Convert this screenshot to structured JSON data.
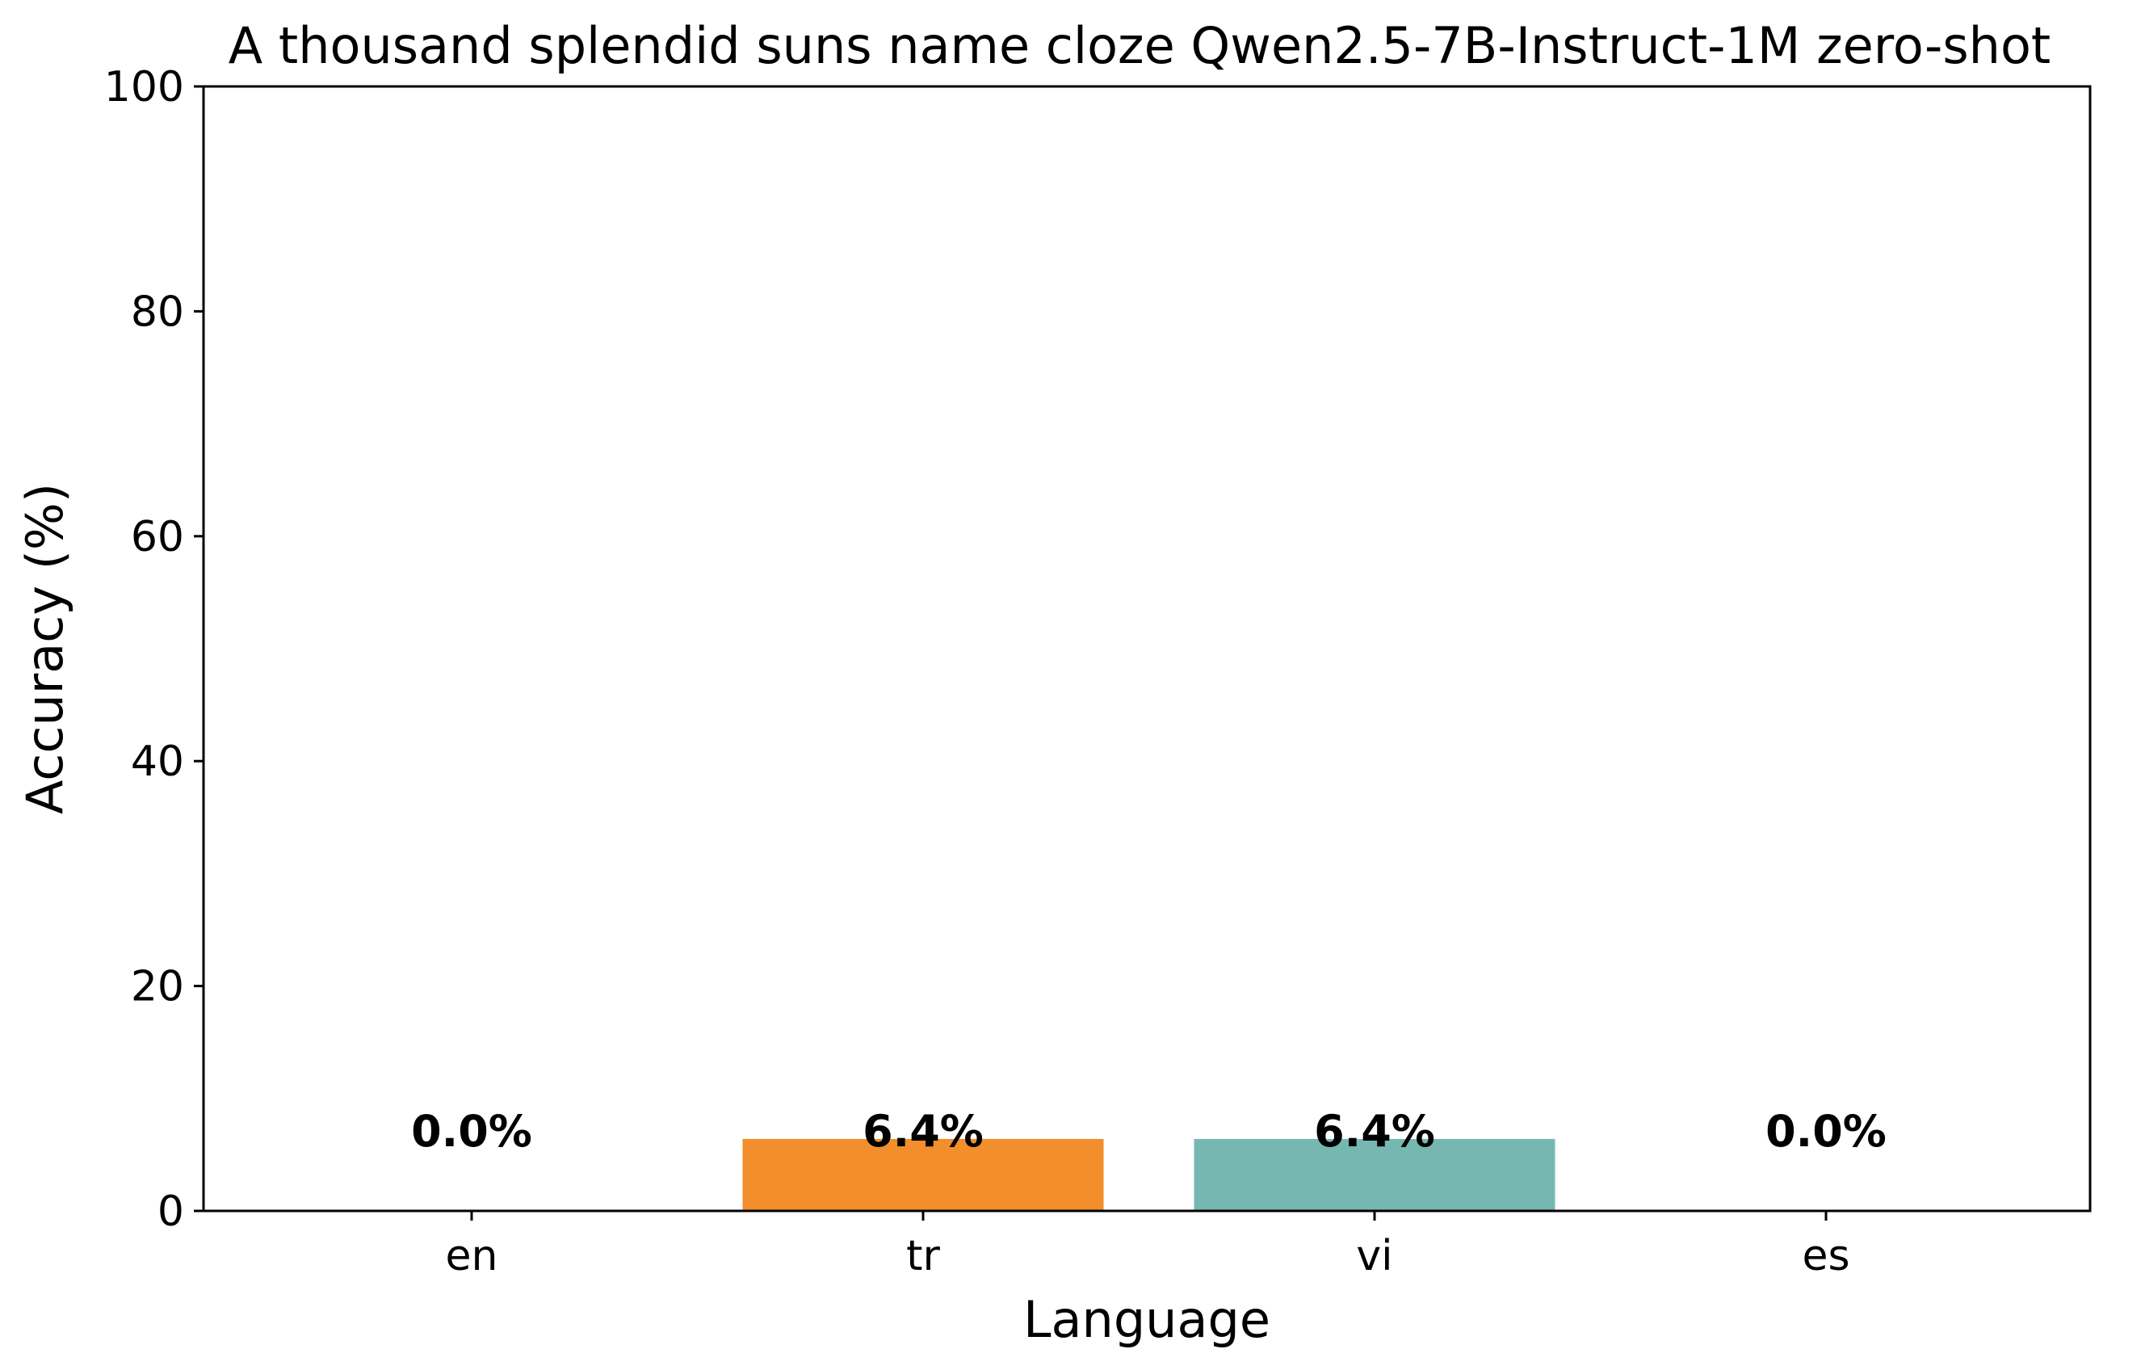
{
  "chart_data": {
    "type": "bar",
    "title": "A thousand splendid suns name cloze Qwen2.5-7B-Instruct-1M zero-shot",
    "xlabel": "Language",
    "ylabel": "Accuracy (%)",
    "categories": [
      "en",
      "tr",
      "vi",
      "es"
    ],
    "values": [
      0.0,
      6.4,
      6.4,
      0.0
    ],
    "value_labels": [
      "0.0%",
      "6.4%",
      "6.4%",
      "0.0%"
    ],
    "colors": [
      "#4c72b0",
      "#f28e2b",
      "#76b7b2",
      "#59a14f"
    ],
    "ylim": [
      0,
      100
    ],
    "yticks": [
      0,
      20,
      40,
      60,
      80,
      100
    ],
    "ytick_labels": [
      "0",
      "20",
      "40",
      "60",
      "80",
      "100"
    ],
    "grid": false,
    "legend": false
  }
}
